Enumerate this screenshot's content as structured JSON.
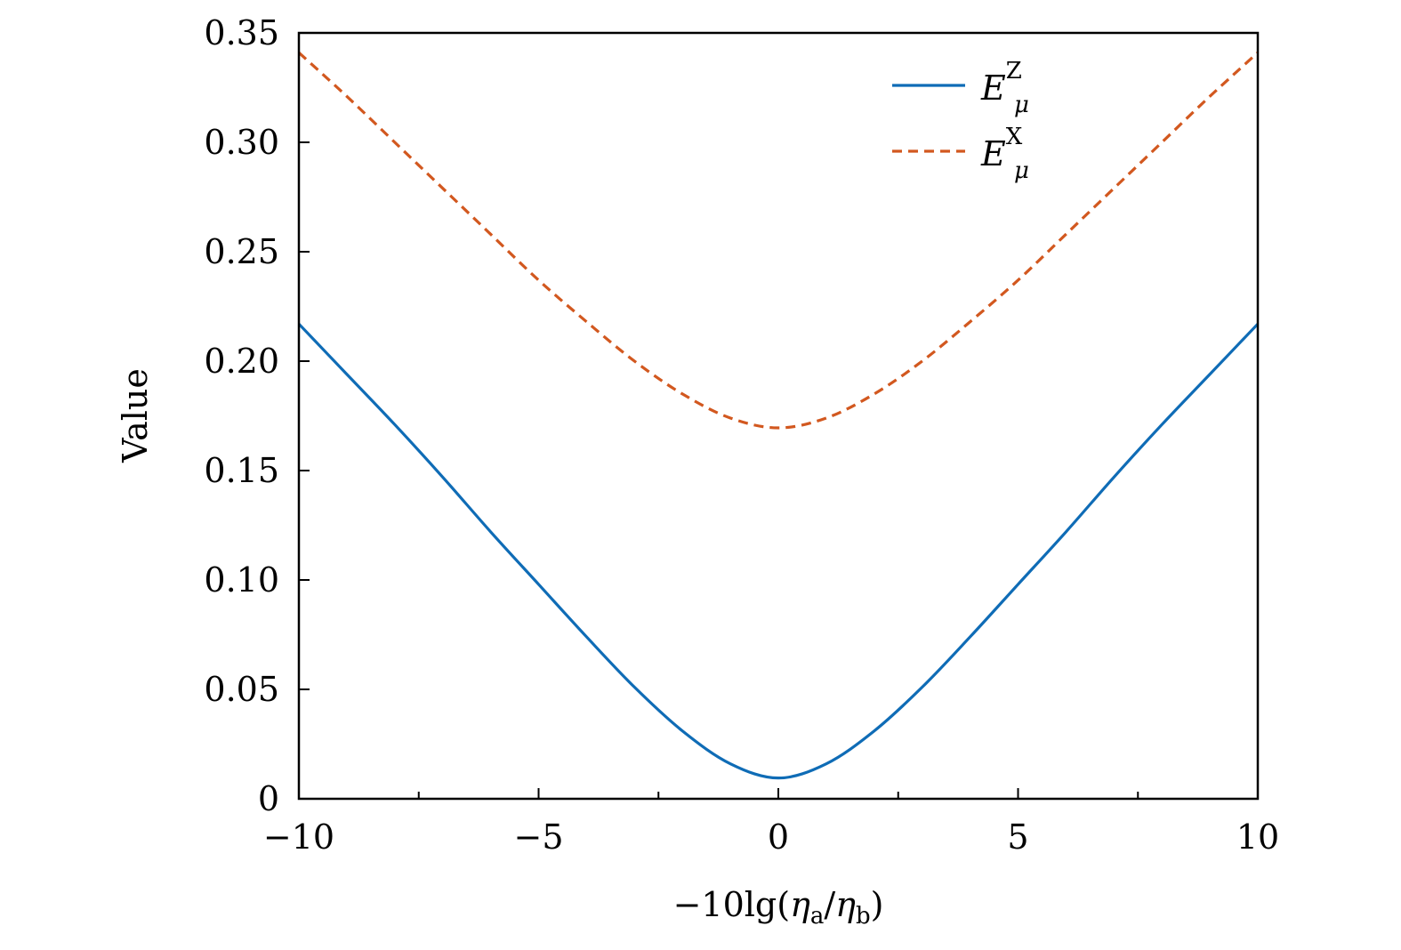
{
  "chart_data": {
    "type": "line",
    "xlabel": "−10lg(ηa/ηb)",
    "ylabel": "Value",
    "xlim": [
      -10,
      10
    ],
    "ylim": [
      0,
      0.35
    ],
    "x_ticks": [
      -10,
      -5,
      0,
      5,
      10
    ],
    "x_tick_labels": [
      "−10",
      "−5",
      "0",
      "5",
      "10"
    ],
    "x_minor_ticks": [
      -7.5,
      -2.5,
      2.5,
      7.5
    ],
    "y_ticks": [
      0,
      0.05,
      0.1,
      0.15,
      0.2,
      0.25,
      0.3,
      0.35
    ],
    "y_tick_labels": [
      "0",
      "0.05",
      "0.10",
      "0.15",
      "0.20",
      "0.25",
      "0.30",
      "0.35"
    ],
    "grid": false,
    "legend_position": "top-right",
    "x": [
      -10,
      -9,
      -8,
      -7,
      -6,
      -5,
      -4,
      -3,
      -2,
      -1,
      0,
      1,
      2,
      3,
      4,
      5,
      6,
      7,
      8,
      9,
      10
    ],
    "series": [
      {
        "name": "E_μ^Z",
        "legend_main": "E",
        "legend_sup": "Z",
        "legend_sub": "μ",
        "style": "solid",
        "color": "#0F6CB6",
        "values": [
          0.217,
          0.194,
          0.171,
          0.147,
          0.122,
          0.098,
          0.074,
          0.051,
          0.031,
          0.016,
          0.0095,
          0.016,
          0.031,
          0.051,
          0.074,
          0.098,
          0.122,
          0.147,
          0.171,
          0.194,
          0.217
        ]
      },
      {
        "name": "E_μ^X",
        "legend_main": "E",
        "legend_sup": "X",
        "legend_sub": "μ",
        "style": "dashed",
        "color": "#D2581F",
        "values": [
          0.341,
          0.321,
          0.3,
          0.279,
          0.258,
          0.237,
          0.218,
          0.2,
          0.185,
          0.174,
          0.1695,
          0.174,
          0.185,
          0.2,
          0.218,
          0.237,
          0.258,
          0.279,
          0.3,
          0.321,
          0.341
        ]
      }
    ]
  }
}
